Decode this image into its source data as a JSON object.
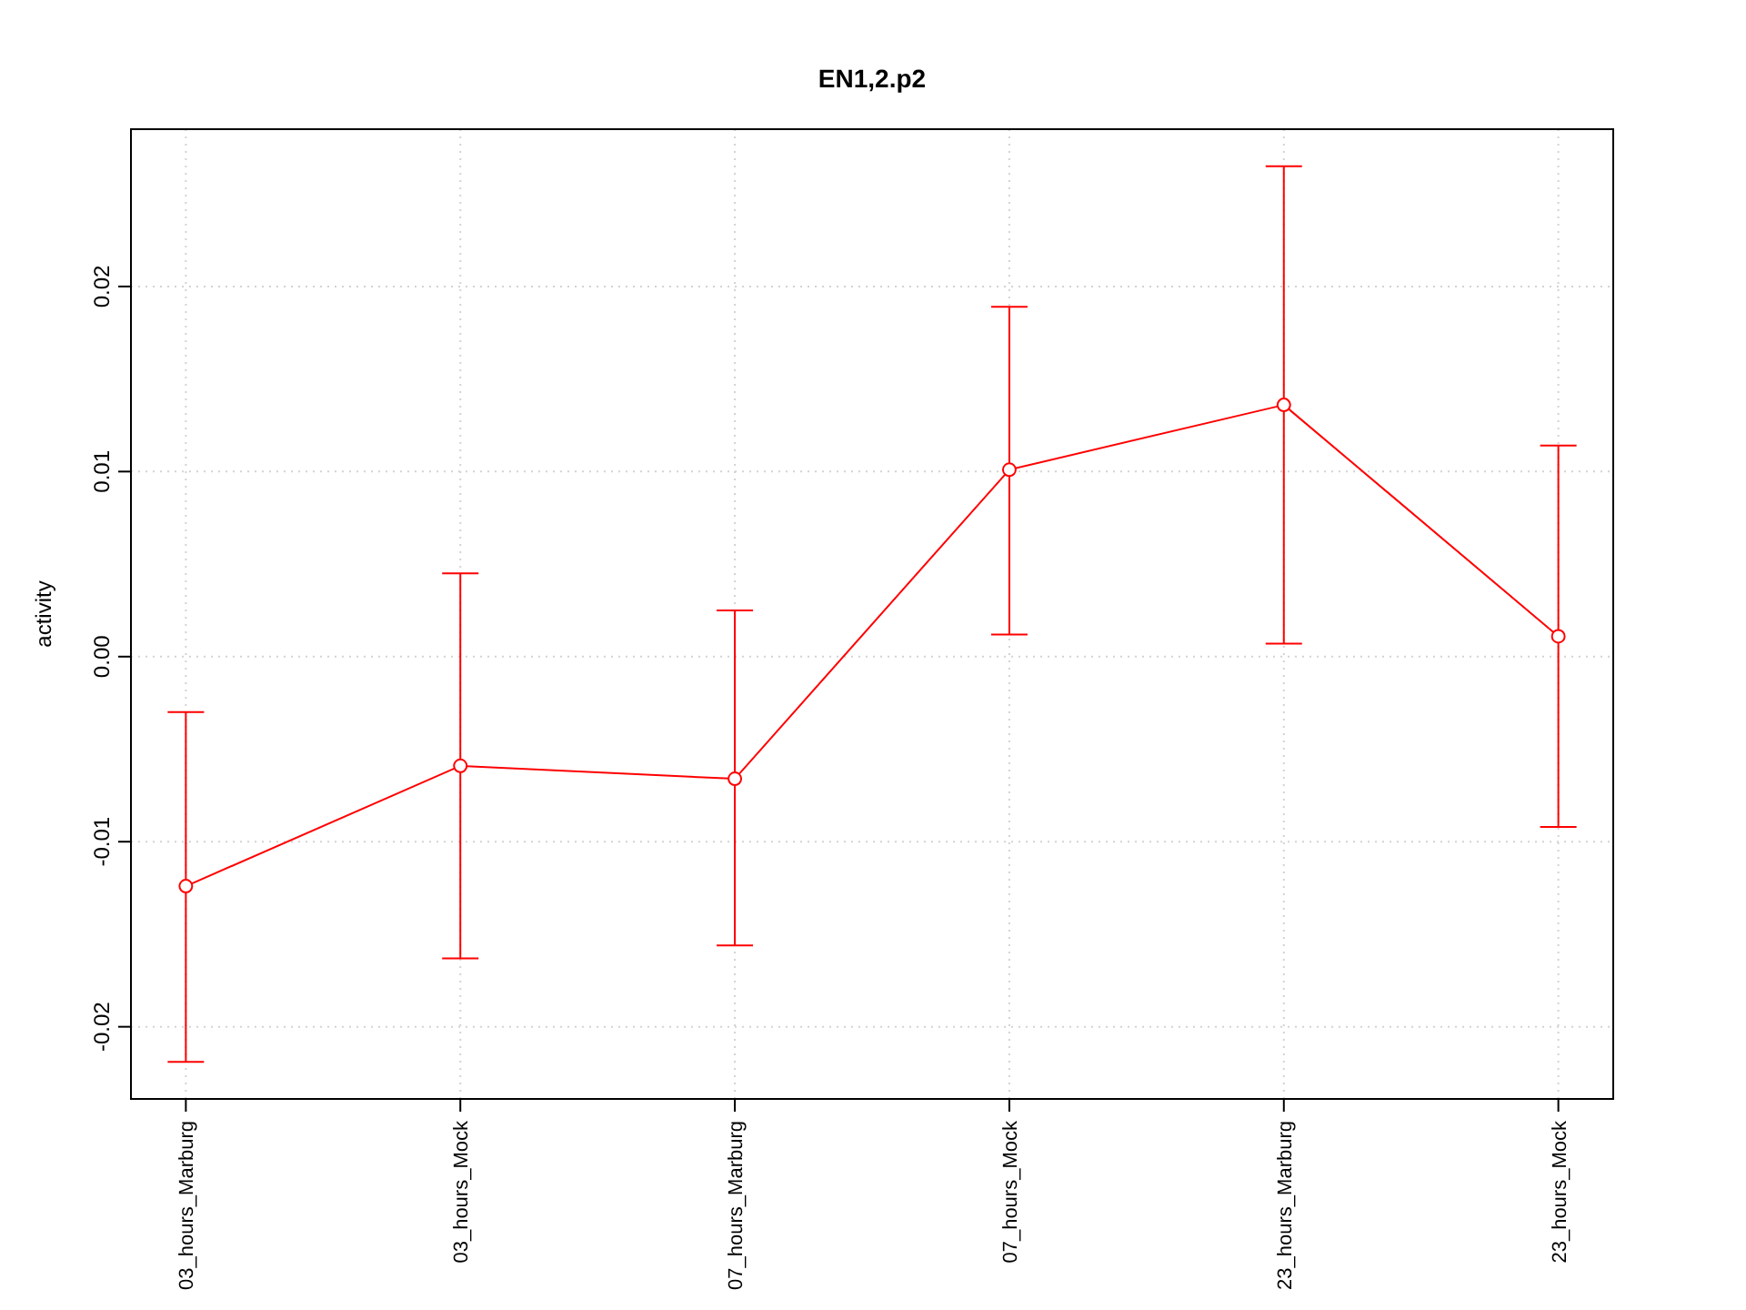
{
  "chart_data": {
    "type": "line",
    "title": "EN1,2.p2",
    "ylabel": "activity",
    "categories": [
      "03_hours_Marburg",
      "03_hours_Mock",
      "07_hours_Marburg",
      "07_hours_Mock",
      "23_hours_Marburg",
      "23_hours_Mock"
    ],
    "series": [
      {
        "color": "#ff0000",
        "values": [
          -0.0124,
          -0.0059,
          -0.0066,
          0.0101,
          0.0136,
          0.0011
        ],
        "errors": [
          [
            -0.0219,
            -0.003
          ],
          [
            -0.0163,
            0.0045
          ],
          [
            -0.0156,
            0.0025
          ],
          [
            0.0012,
            0.0189
          ],
          [
            0.0007,
            0.0265
          ],
          [
            -0.0092,
            0.0114
          ]
        ]
      }
    ],
    "ylim": [
      -0.0239,
      0.0285
    ],
    "yticks": [
      {
        "value": -0.02,
        "label": "-0.02"
      },
      {
        "value": -0.01,
        "label": "-0.01"
      },
      {
        "value": 0,
        "label": "0.00"
      },
      {
        "value": 0.01,
        "label": "0.01"
      },
      {
        "value": 0.02,
        "label": "0.02"
      }
    ],
    "grid": true,
    "marker": "circle",
    "line_style": "solid"
  }
}
